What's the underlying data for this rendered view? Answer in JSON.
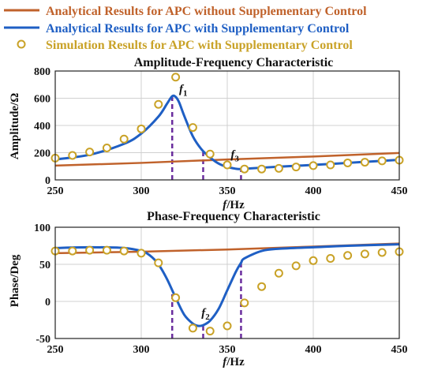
{
  "legend": [
    {
      "label": "Analytical Results for APC without Supplementary Control",
      "color": "#c0622b",
      "marker": "line"
    },
    {
      "label": "Analytical Results for APC with Supplementary Control",
      "color": "#1f5fc4",
      "marker": "line"
    },
    {
      "label": "Simulation Results for APC with Supplementary Control",
      "color": "#c9a227",
      "marker": "circle"
    }
  ],
  "colors": {
    "dashed": "#6a2d9e",
    "grid": "#d0d0d0"
  },
  "chart_data": [
    {
      "type": "line",
      "title": "Amplitude-Frequency Characteristic",
      "xlabel": {
        "italic": "f",
        "rest": "/Hz"
      },
      "ylabel": "Amplitude/Ω",
      "xlim": [
        250,
        450
      ],
      "ylim": [
        0,
        800
      ],
      "xticks": [
        250,
        300,
        350,
        400,
        450
      ],
      "yticks": [
        0,
        200,
        400,
        600,
        800
      ],
      "grid": true,
      "series": [
        {
          "name": "Analytical Results for APC without Supplementary Control",
          "x": [
            250,
            300,
            350,
            400,
            450
          ],
          "y": [
            105,
            125,
            150,
            172,
            198
          ]
        },
        {
          "name": "Analytical Results for APC with Supplementary Control",
          "x": [
            250,
            270,
            290,
            300,
            310,
            315,
            318,
            320,
            322,
            325,
            330,
            335,
            340,
            345,
            350,
            355,
            357,
            360,
            380,
            400,
            420,
            440,
            450
          ],
          "y": [
            150,
            185,
            265,
            340,
            465,
            560,
            615,
            610,
            570,
            470,
            320,
            225,
            165,
            120,
            95,
            82,
            80,
            82,
            97,
            110,
            125,
            140,
            148
          ]
        },
        {
          "name": "Simulation Results for APC with Supplementary Control",
          "x": [
            250,
            260,
            270,
            280,
            290,
            300,
            310,
            320,
            330,
            340,
            350,
            360,
            370,
            380,
            390,
            400,
            410,
            420,
            430,
            440,
            450
          ],
          "y": [
            160,
            180,
            205,
            235,
            300,
            375,
            555,
            755,
            385,
            190,
            110,
            80,
            80,
            85,
            95,
            105,
            110,
            125,
            130,
            140,
            145
          ]
        }
      ],
      "markers_x": [
        318,
        336,
        358
      ],
      "annotations": [
        {
          "text": "f",
          "sub": "1",
          "x": 322,
          "y": 640
        },
        {
          "text": "f",
          "sub": "3",
          "x": 352,
          "y": 160
        }
      ]
    },
    {
      "type": "line",
      "title": "Phase-Frequency Characteristic",
      "xlabel": {
        "italic": "f",
        "rest": "/Hz"
      },
      "ylabel": "Phase/Deg",
      "xlim": [
        250,
        450
      ],
      "ylim": [
        -50,
        100
      ],
      "xticks": [
        250,
        300,
        350,
        400,
        450
      ],
      "yticks": [
        -50,
        0,
        50,
        100
      ],
      "grid": true,
      "series": [
        {
          "name": "Analytical Results for APC without Supplementary Control",
          "x": [
            250,
            300,
            350,
            400,
            450
          ],
          "y": [
            65,
            67,
            70,
            74,
            78
          ]
        },
        {
          "name": "Analytical Results for APC with Supplementary Control",
          "x": [
            250,
            270,
            290,
            300,
            305,
            310,
            315,
            320,
            325,
            330,
            333,
            336,
            340,
            345,
            350,
            355,
            358,
            360,
            370,
            380,
            400,
            420,
            450
          ],
          "y": [
            72,
            73,
            72,
            68,
            62,
            50,
            30,
            5,
            -18,
            -30,
            -33,
            -32,
            -26,
            -10,
            15,
            40,
            52,
            58,
            68,
            71,
            73,
            75,
            77
          ]
        },
        {
          "name": "Simulation Results for APC with Supplementary Control",
          "x": [
            250,
            260,
            270,
            280,
            290,
            300,
            310,
            320,
            330,
            340,
            350,
            360,
            370,
            380,
            390,
            400,
            410,
            420,
            430,
            440,
            450
          ],
          "y": [
            68,
            68,
            69,
            69,
            68,
            65,
            52,
            5,
            -36,
            -40,
            -33,
            -2,
            20,
            38,
            48,
            55,
            58,
            62,
            64,
            66,
            67
          ]
        }
      ],
      "markers_x": [
        318,
        336,
        358
      ],
      "annotations": [
        {
          "text": "f",
          "sub": "2",
          "x": 335,
          "y": -20
        }
      ]
    }
  ]
}
